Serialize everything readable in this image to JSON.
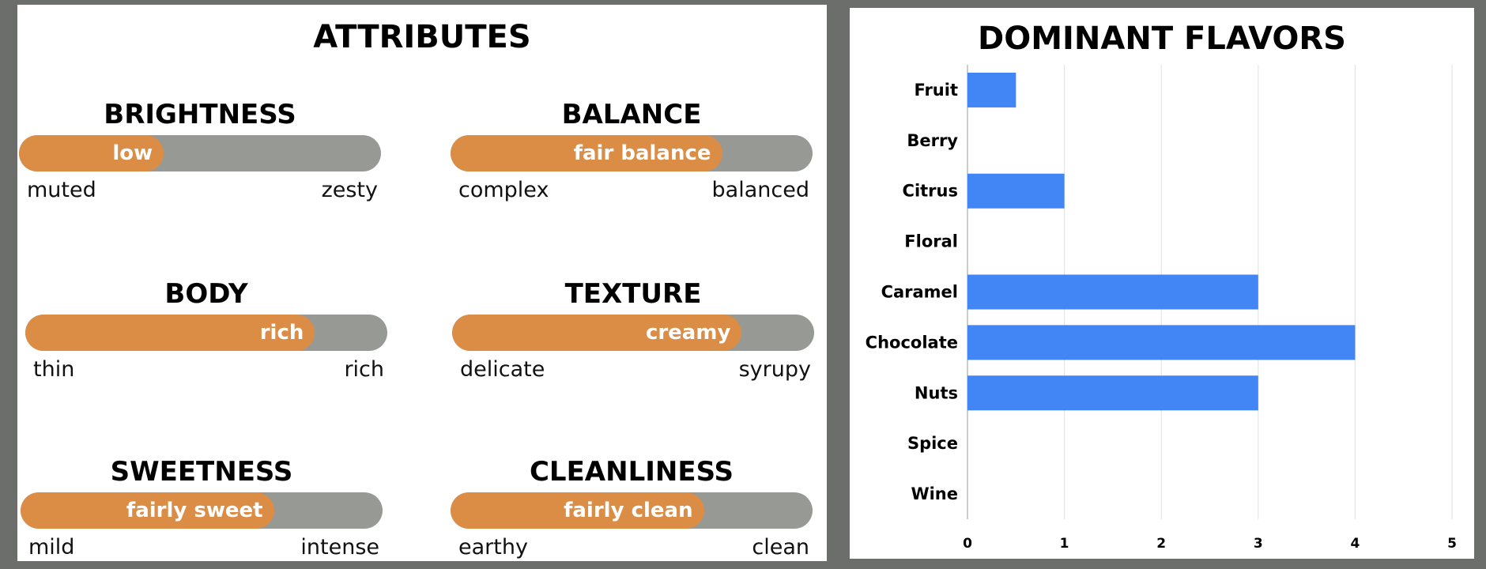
{
  "attributes": {
    "title": "ATTRIBUTES",
    "items": [
      {
        "name": "BRIGHTNESS",
        "value_label": "low",
        "level": 0.4,
        "low": "muted",
        "high": "zesty"
      },
      {
        "name": "BALANCE",
        "value_label": "fair balance",
        "level": 0.75,
        "low": "complex",
        "high": "balanced"
      },
      {
        "name": "BODY",
        "value_label": "rich",
        "level": 0.8,
        "low": "thin",
        "high": "rich"
      },
      {
        "name": "TEXTURE",
        "value_label": "creamy",
        "level": 0.8,
        "low": "delicate",
        "high": "syrupy"
      },
      {
        "name": "SWEETNESS",
        "value_label": "fairly sweet",
        "level": 0.7,
        "low": "mild",
        "high": "intense"
      },
      {
        "name": "CLEANLINESS",
        "value_label": "fairly clean",
        "level": 0.7,
        "low": "earthy",
        "high": "clean"
      }
    ],
    "colors": {
      "fill": "#db8d45",
      "track": "#979995"
    }
  },
  "chart_data": {
    "type": "bar",
    "orientation": "horizontal",
    "title": "DOMINANT FLAVORS",
    "categories": [
      "Fruit",
      "Berry",
      "Citrus",
      "Floral",
      "Caramel",
      "Chocolate",
      "Nuts",
      "Spice",
      "Wine"
    ],
    "values": [
      0.5,
      0,
      1,
      0,
      3,
      4,
      3,
      0,
      0
    ],
    "xlim": [
      0,
      5
    ],
    "xticks": [
      "0",
      "1",
      "2",
      "3",
      "4",
      "5"
    ],
    "grid": true,
    "color": "#4285f4"
  }
}
